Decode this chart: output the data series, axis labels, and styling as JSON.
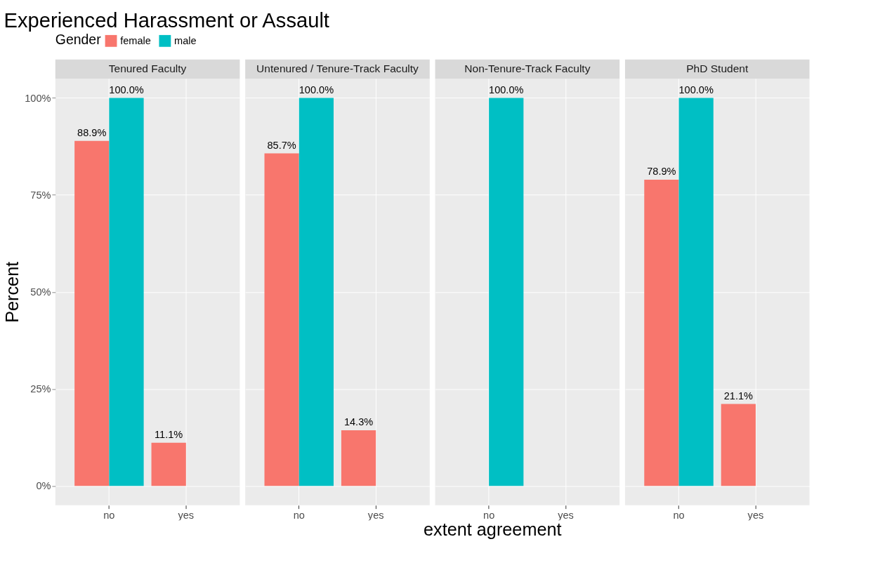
{
  "chart_data": [
    {
      "type": "bar",
      "title": "Experienced Harassment or Assault",
      "subtitle": "Tenured Faculty",
      "ylabel": "Percent",
      "legend_title": "Gender",
      "legend": "top",
      "grid": true,
      "categories": [
        "no",
        "yes"
      ],
      "ylim": [
        -5,
        105
      ],
      "yticks": [
        {
          "value": 0,
          "label": "0%"
        },
        {
          "value": 25,
          "label": "25%"
        },
        {
          "value": 50,
          "label": "50%"
        },
        {
          "value": 75,
          "label": "75%"
        },
        {
          "value": 100,
          "label": "100%"
        }
      ],
      "series": [
        {
          "name": "female",
          "color": "#f8766d",
          "values": [
            88.9,
            11.1
          ],
          "value_labels": [
            "88.9%",
            "11.1%"
          ]
        },
        {
          "name": "male",
          "color": "#00bfc4",
          "values": [
            100,
            null
          ],
          "value_labels": [
            "100.0%",
            null
          ]
        }
      ]
    },
    {
      "type": "bar",
      "subtitle": "Untenured / Tenure-Track Faculty",
      "xlabel": "extent agreement",
      "grid": true,
      "tick_labels": "x",
      "categories": [
        "no",
        "yes"
      ],
      "ylim": [
        -5,
        105
      ],
      "yticks": [
        0,
        25,
        50,
        75,
        100
      ],
      "series": [
        {
          "name": "female",
          "color": "#f8766d",
          "values": [
            85.7,
            14.3
          ],
          "value_labels": [
            "85.7%",
            "14.3%"
          ]
        },
        {
          "name": "male",
          "color": "#00bfc4",
          "values": [
            100,
            null
          ],
          "value_labels": [
            "100.0%",
            null
          ]
        }
      ]
    },
    {
      "type": "bar",
      "subtitle": "Non-Tenure-Track Faculty",
      "grid": true,
      "tick_labels": "x",
      "categories": [
        "no",
        "yes"
      ],
      "ylim": [
        -5,
        105
      ],
      "yticks": [
        0,
        25,
        50,
        75,
        100
      ],
      "series": [
        {
          "name": "female",
          "color": "#f8766d",
          "values": [
            null,
            null
          ],
          "value_labels": [
            null,
            null
          ]
        },
        {
          "name": "male",
          "color": "#00bfc4",
          "values": [
            100,
            null
          ],
          "value_labels": [
            "100.0%",
            null
          ]
        }
      ]
    },
    {
      "type": "bar",
      "subtitle": "PhD Student",
      "grid": true,
      "tick_labels": "x",
      "categories": [
        "no",
        "yes"
      ],
      "ylim": [
        -5,
        105
      ],
      "yticks": [
        0,
        25,
        50,
        75,
        100
      ],
      "series": [
        {
          "name": "female",
          "color": "#f8766d",
          "values": [
            78.9,
            21.1
          ],
          "value_labels": [
            "78.9%",
            "21.1%"
          ]
        },
        {
          "name": "male",
          "color": "#00bfc4",
          "values": [
            100,
            null
          ],
          "value_labels": [
            "100.0%",
            null
          ]
        }
      ]
    }
  ]
}
